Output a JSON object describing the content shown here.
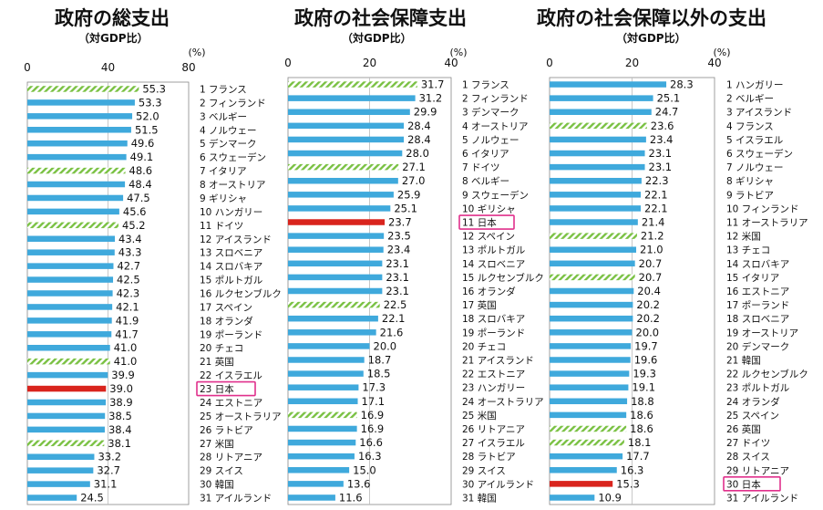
{
  "colors": {
    "bar": "#3fa9dc",
    "japan": "#d9241d",
    "hatch": "#7ac143",
    "highlight": "#e0308c"
  },
  "chart_data": [
    {
      "type": "bar",
      "title": "政府の総支出",
      "subtitle": "（対GDP比）",
      "unit": "(%)",
      "xlim": [
        0,
        80
      ],
      "ticks": [
        0,
        40,
        80
      ],
      "orientation": "horizontal",
      "categories": [
        "1 フランス",
        "2 フィンランド",
        "3 ベルギー",
        "4 ノルウェー",
        "5 デンマーク",
        "6 スウェーデン",
        "7 イタリア",
        "8 オーストリア",
        "9 ギリシャ",
        "10 ハンガリー",
        "11 ドイツ",
        "12 アイスランド",
        "13 スロベニア",
        "14 スロバキア",
        "15 ポルトガル",
        "16 ルクセンブルク",
        "17 スペイン",
        "18 オランダ",
        "19 ポーランド",
        "20 チェコ",
        "21 英国",
        "22 イスラエル",
        "23 日本",
        "24 エストニア",
        "25 オーストラリア",
        "26 ラトビア",
        "27 米国",
        "28 リトアニア",
        "29 スイス",
        "30 韓国",
        "31 アイルランド"
      ],
      "values": [
        55.3,
        53.3,
        52.0,
        51.5,
        49.6,
        49.1,
        48.6,
        48.4,
        47.5,
        45.6,
        45.2,
        43.4,
        43.3,
        42.7,
        42.5,
        42.3,
        42.1,
        41.9,
        41.7,
        41.0,
        41.0,
        39.9,
        39.0,
        38.9,
        38.5,
        38.4,
        38.1,
        33.2,
        32.7,
        31.1,
        24.5
      ],
      "value_labels": [
        "55.3",
        "53.3",
        "52.0",
        "51.5",
        "49.6",
        "49.1",
        "48.6",
        "48.4",
        "47.5",
        "45.6",
        "45.2",
        "43.4",
        "43.3",
        "42.7",
        "42.5",
        "42.3",
        "42.1",
        "41.9",
        "41.7",
        "41.0",
        "41.0",
        "39.9",
        "39.0",
        "38.9",
        "38.5",
        "38.4",
        "38.1",
        "33.2",
        "32.7",
        "31.1",
        "24.5"
      ],
      "hatched": [
        0,
        6,
        10,
        20,
        26
      ],
      "highlight": 22
    },
    {
      "type": "bar",
      "title": "政府の社会保障支出",
      "subtitle": "（対GDP比）",
      "unit": "(%)",
      "xlim": [
        0,
        40
      ],
      "ticks": [
        0,
        20,
        40
      ],
      "orientation": "horizontal",
      "categories": [
        "1 フランス",
        "2 フィンランド",
        "3 デンマーク",
        "4 オーストリア",
        "5 ノルウェー",
        "6 イタリア",
        "7 ドイツ",
        "8 ベルギー",
        "9 スウェーデン",
        "10 ギリシャ",
        "11 日本",
        "12 スペイン",
        "13 ポルトガル",
        "14 スロベニア",
        "15 ルクセンブルク",
        "16 オランダ",
        "17 英国",
        "18 スロバキア",
        "19 ポーランド",
        "20 チェコ",
        "21 アイスランド",
        "22 エストニア",
        "23 ハンガリー",
        "24 オーストラリア",
        "25 米国",
        "26 リトアニア",
        "27 イスラエル",
        "28 ラトビア",
        "29 スイス",
        "30 アイルランド",
        "31 韓国"
      ],
      "values": [
        31.7,
        31.2,
        29.9,
        28.4,
        28.4,
        28.0,
        27.1,
        27.0,
        25.9,
        25.1,
        23.7,
        23.5,
        23.4,
        23.1,
        23.1,
        23.1,
        22.5,
        22.1,
        21.6,
        20.0,
        18.7,
        18.5,
        17.3,
        17.1,
        16.9,
        16.9,
        16.6,
        16.3,
        15.0,
        13.6,
        11.6
      ],
      "value_labels": [
        "31.7",
        "31.2",
        "29.9",
        "28.4",
        "28.4",
        "28.0",
        "27.1",
        "27.0",
        "25.9",
        "25.1",
        "23.7",
        "23.5",
        "23.4",
        "23.1",
        "23.1",
        "23.1",
        "22.5",
        "22.1",
        "21.6",
        "20.0",
        "18.7",
        "18.5",
        "17.3",
        "17.1",
        "16.9",
        "16.9",
        "16.6",
        "16.3",
        "15.0",
        "13.6",
        "11.6"
      ],
      "hatched": [
        0,
        6,
        16,
        24
      ],
      "highlight": 10
    },
    {
      "type": "bar",
      "title": "政府の社会保障以外の支出",
      "subtitle": "（対GDP比）",
      "unit": "(%)",
      "xlim": [
        0,
        40
      ],
      "ticks": [
        0,
        20,
        40
      ],
      "orientation": "horizontal",
      "categories": [
        "1 ハンガリー",
        "2 ベルギー",
        "3 アイスランド",
        "4 フランス",
        "5 イスラエル",
        "6 スウェーデン",
        "7 ノルウェー",
        "8 ギリシャ",
        "9 ラトビア",
        "10 フィンランド",
        "11 オーストラリア",
        "12 米国",
        "13 チェコ",
        "14 スロバキア",
        "15 イタリア",
        "16 エストニア",
        "17 ポーランド",
        "18 スロベニア",
        "19 オーストリア",
        "20 デンマーク",
        "21 韓国",
        "22 ルクセンブルク",
        "23 ポルトガル",
        "24 オランダ",
        "25 スペイン",
        "26 英国",
        "27 ドイツ",
        "28 スイス",
        "29 リトアニア",
        "30 日本",
        "31 アイルランド"
      ],
      "values": [
        28.3,
        25.1,
        24.7,
        23.6,
        23.4,
        23.1,
        23.1,
        22.3,
        22.1,
        22.1,
        21.4,
        21.2,
        21.0,
        20.7,
        20.7,
        20.4,
        20.2,
        20.2,
        20.0,
        19.7,
        19.6,
        19.3,
        19.1,
        18.8,
        18.6,
        18.6,
        18.1,
        17.7,
        16.3,
        15.3,
        10.9
      ],
      "value_labels": [
        "28.3",
        "25.1",
        "24.7",
        "23.6",
        "23.4",
        "23.1",
        "23.1",
        "22.3",
        "22.1",
        "22.1",
        "21.4",
        "21.2",
        "21.0",
        "20.7",
        "20.7",
        "20.4",
        "20.2",
        "20.2",
        "20.0",
        "19.7",
        "19.6",
        "19.3",
        "19.1",
        "18.8",
        "18.6",
        "18.6",
        "18.1",
        "17.7",
        "16.3",
        "15.3",
        "10.9"
      ],
      "hatched": [
        3,
        11,
        14,
        25,
        26
      ],
      "highlight": 29
    }
  ]
}
